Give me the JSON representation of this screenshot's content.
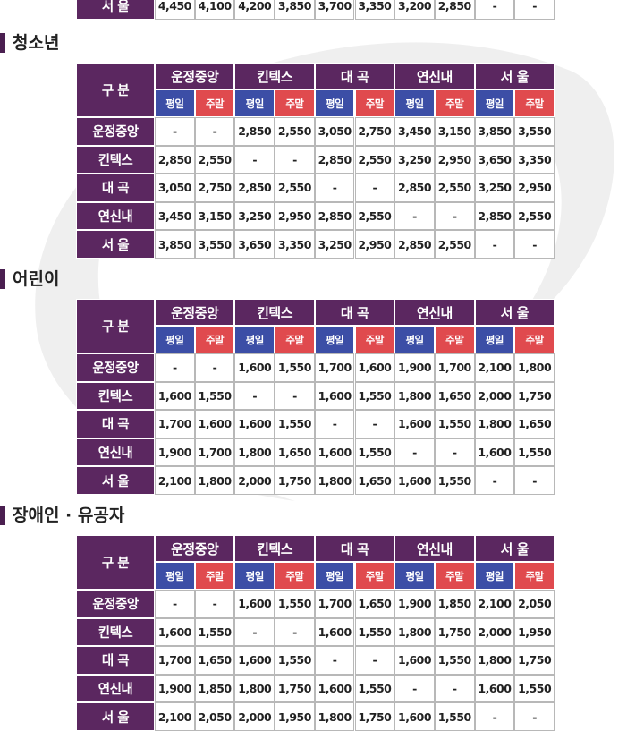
{
  "top_row": {
    "label": "서 울",
    "cells": [
      "4,450",
      "4,100",
      "4,200",
      "3,850",
      "3,700",
      "3,350",
      "3,200",
      "2,850",
      "-",
      "-"
    ]
  },
  "sections": [
    {
      "heading": "청소년",
      "table": {
        "corner": "구 분",
        "stations": [
          "운정중앙",
          "킨텍스",
          "대 곡",
          "연신내",
          "서 울"
        ],
        "day_labels": [
          "평일",
          "주말"
        ],
        "rows": [
          {
            "label": "운정중앙",
            "cells": [
              "-",
              "-",
              "2,850",
              "2,550",
              "3,050",
              "2,750",
              "3,450",
              "3,150",
              "3,850",
              "3,550"
            ]
          },
          {
            "label": "킨텍스",
            "cells": [
              "2,850",
              "2,550",
              "-",
              "-",
              "2,850",
              "2,550",
              "3,250",
              "2,950",
              "3,650",
              "3,350"
            ]
          },
          {
            "label": "대 곡",
            "cells": [
              "3,050",
              "2,750",
              "2,850",
              "2,550",
              "-",
              "-",
              "2,850",
              "2,550",
              "3,250",
              "2,950"
            ]
          },
          {
            "label": "연신내",
            "cells": [
              "3,450",
              "3,150",
              "3,250",
              "2,950",
              "2,850",
              "2,550",
              "-",
              "-",
              "2,850",
              "2,550"
            ]
          },
          {
            "label": "서 울",
            "cells": [
              "3,850",
              "3,550",
              "3,650",
              "3,350",
              "3,250",
              "2,950",
              "2,850",
              "2,550",
              "-",
              "-"
            ]
          }
        ]
      }
    },
    {
      "heading": "어린이",
      "table": {
        "corner": "구 분",
        "stations": [
          "운정중앙",
          "킨텍스",
          "대 곡",
          "연신내",
          "서 울"
        ],
        "day_labels": [
          "평일",
          "주말"
        ],
        "rows": [
          {
            "label": "운정중앙",
            "cells": [
              "-",
              "-",
              "1,600",
              "1,550",
              "1,700",
              "1,600",
              "1,900",
              "1,700",
              "2,100",
              "1,800"
            ]
          },
          {
            "label": "킨텍스",
            "cells": [
              "1,600",
              "1,550",
              "-",
              "-",
              "1,600",
              "1,550",
              "1,800",
              "1,650",
              "2,000",
              "1,750"
            ]
          },
          {
            "label": "대 곡",
            "cells": [
              "1,700",
              "1,600",
              "1,600",
              "1,550",
              "-",
              "-",
              "1,600",
              "1,550",
              "1,800",
              "1,650"
            ]
          },
          {
            "label": "연신내",
            "cells": [
              "1,900",
              "1,700",
              "1,800",
              "1,650",
              "1,600",
              "1,550",
              "-",
              "-",
              "1,600",
              "1,550"
            ]
          },
          {
            "label": "서 울",
            "cells": [
              "2,100",
              "1,800",
              "2,000",
              "1,750",
              "1,800",
              "1,650",
              "1,600",
              "1,550",
              "-",
              "-"
            ]
          }
        ]
      }
    },
    {
      "heading": "장애인 · 유공자",
      "table": {
        "corner": "구 분",
        "stations": [
          "운정중앙",
          "킨텍스",
          "대 곡",
          "연신내",
          "서 울"
        ],
        "day_labels": [
          "평일",
          "주말"
        ],
        "rows": [
          {
            "label": "운정중앙",
            "cells": [
              "-",
              "-",
              "1,600",
              "1,550",
              "1,700",
              "1,650",
              "1,900",
              "1,850",
              "2,100",
              "2,050"
            ]
          },
          {
            "label": "킨텍스",
            "cells": [
              "1,600",
              "1,550",
              "-",
              "-",
              "1,600",
              "1,550",
              "1,800",
              "1,750",
              "2,000",
              "1,950"
            ]
          },
          {
            "label": "대 곡",
            "cells": [
              "1,700",
              "1,650",
              "1,600",
              "1,550",
              "-",
              "-",
              "1,600",
              "1,550",
              "1,800",
              "1,750"
            ]
          },
          {
            "label": "연신내",
            "cells": [
              "1,900",
              "1,850",
              "1,800",
              "1,750",
              "1,600",
              "1,550",
              "-",
              "-",
              "1,600",
              "1,550"
            ]
          },
          {
            "label": "서 울",
            "cells": [
              "2,100",
              "2,050",
              "2,000",
              "1,950",
              "1,800",
              "1,750",
              "1,600",
              "1,550",
              "-",
              "-"
            ]
          }
        ]
      }
    }
  ]
}
